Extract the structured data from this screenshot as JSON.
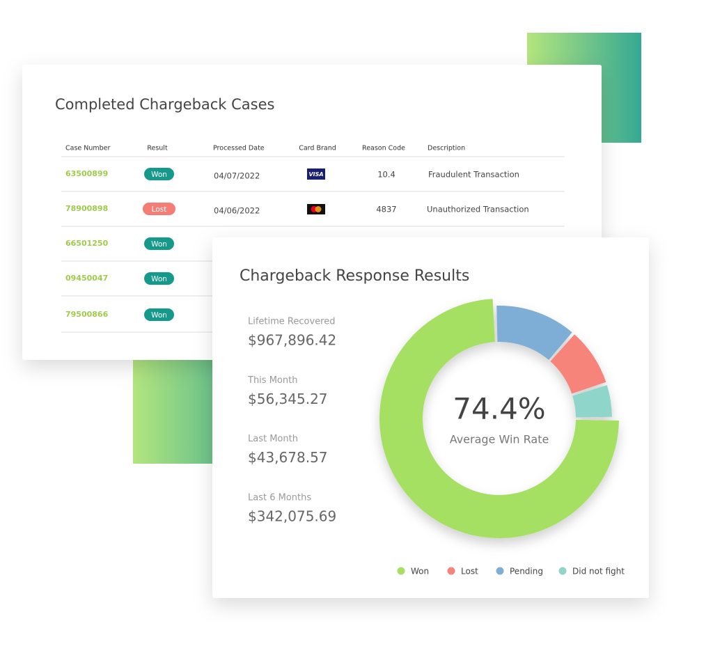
{
  "table_card": {
    "title": "Completed Chargeback Cases",
    "columns": [
      "Case Number",
      "Result",
      "Processed Date",
      "Card Brand",
      "Reason Code",
      "Description"
    ],
    "rows": [
      {
        "case": "63500899",
        "result": "Won",
        "date": "04/07/2022",
        "brand": "VISA",
        "code": "10.4",
        "description": "Fraudulent Transaction"
      },
      {
        "case": "78900898",
        "result": "Lost",
        "date": "04/06/2022",
        "code": "4837",
        "description": "Unauthorized Transaction"
      },
      {
        "case": "66501250",
        "result": "Won"
      },
      {
        "case": "09450047",
        "result": "Won"
      },
      {
        "case": "79500866",
        "result": "Won"
      }
    ]
  },
  "results_card": {
    "title": "Chargeback Response Results",
    "stats": [
      {
        "label": "Lifetime Recovered",
        "value": "$967,896.42"
      },
      {
        "label": "This Month",
        "value": "$56,345.27"
      },
      {
        "label": "Last Month",
        "value": "$43,678.57"
      },
      {
        "label": "Last 6 Months",
        "value": "$342,075.69"
      }
    ]
  },
  "chart_data": {
    "type": "pie",
    "center_label": "74.4%",
    "center_caption": "Average Win Rate",
    "categories": [
      "Won",
      "Lost",
      "Pending",
      "Did not fight"
    ],
    "values": [
      74.4,
      8.6,
      12,
      5
    ],
    "colors": [
      "#a6e063",
      "#f7847a",
      "#7eaed5",
      "#8fd5c9"
    ],
    "legend": "bottom"
  }
}
